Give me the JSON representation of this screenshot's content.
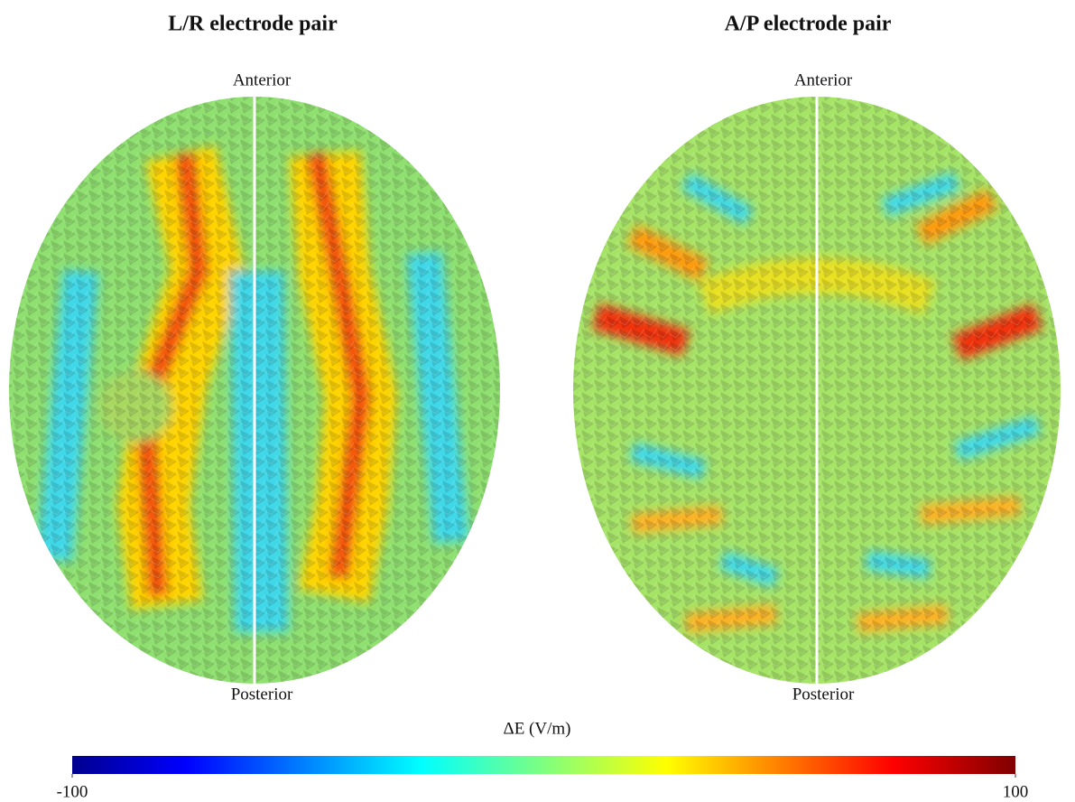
{
  "panels": [
    {
      "title": "L/R electrode pair",
      "top_label": "Anterior",
      "bottom_label": "Posterior"
    },
    {
      "title": "A/P electrode pair",
      "top_label": "Anterior",
      "bottom_label": "Posterior"
    }
  ],
  "colorbar": {
    "label": "ΔE (V/m)",
    "lim": [
      -100,
      100
    ],
    "ticks": [
      -100,
      100
    ],
    "colormap": "jet"
  }
}
